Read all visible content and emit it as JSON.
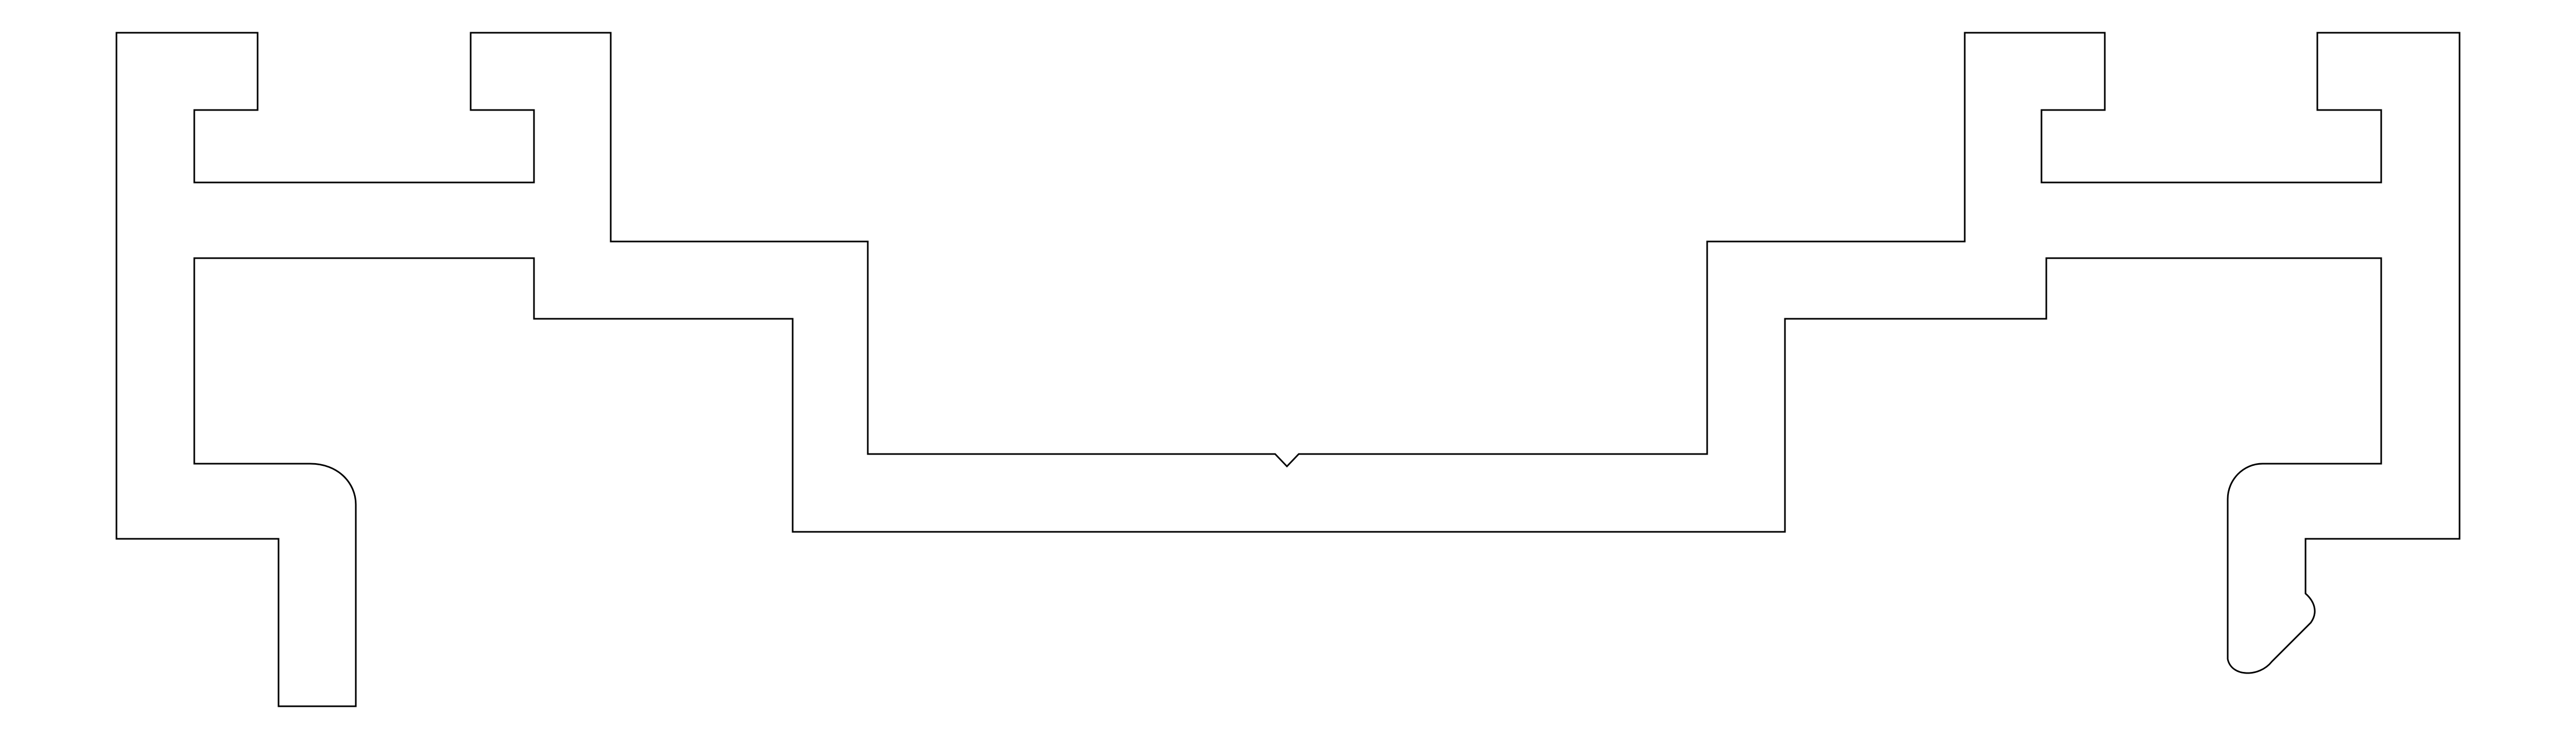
{
  "drawing": {
    "subject": "extrusion-profile-cross-section",
    "stroke_color": "#000000",
    "background_color": "#ffffff"
  }
}
